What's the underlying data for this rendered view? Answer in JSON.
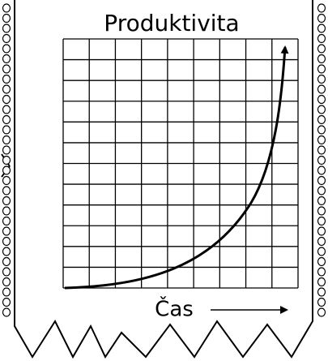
{
  "title": "Produktivita",
  "x_label": "Čas"
}
